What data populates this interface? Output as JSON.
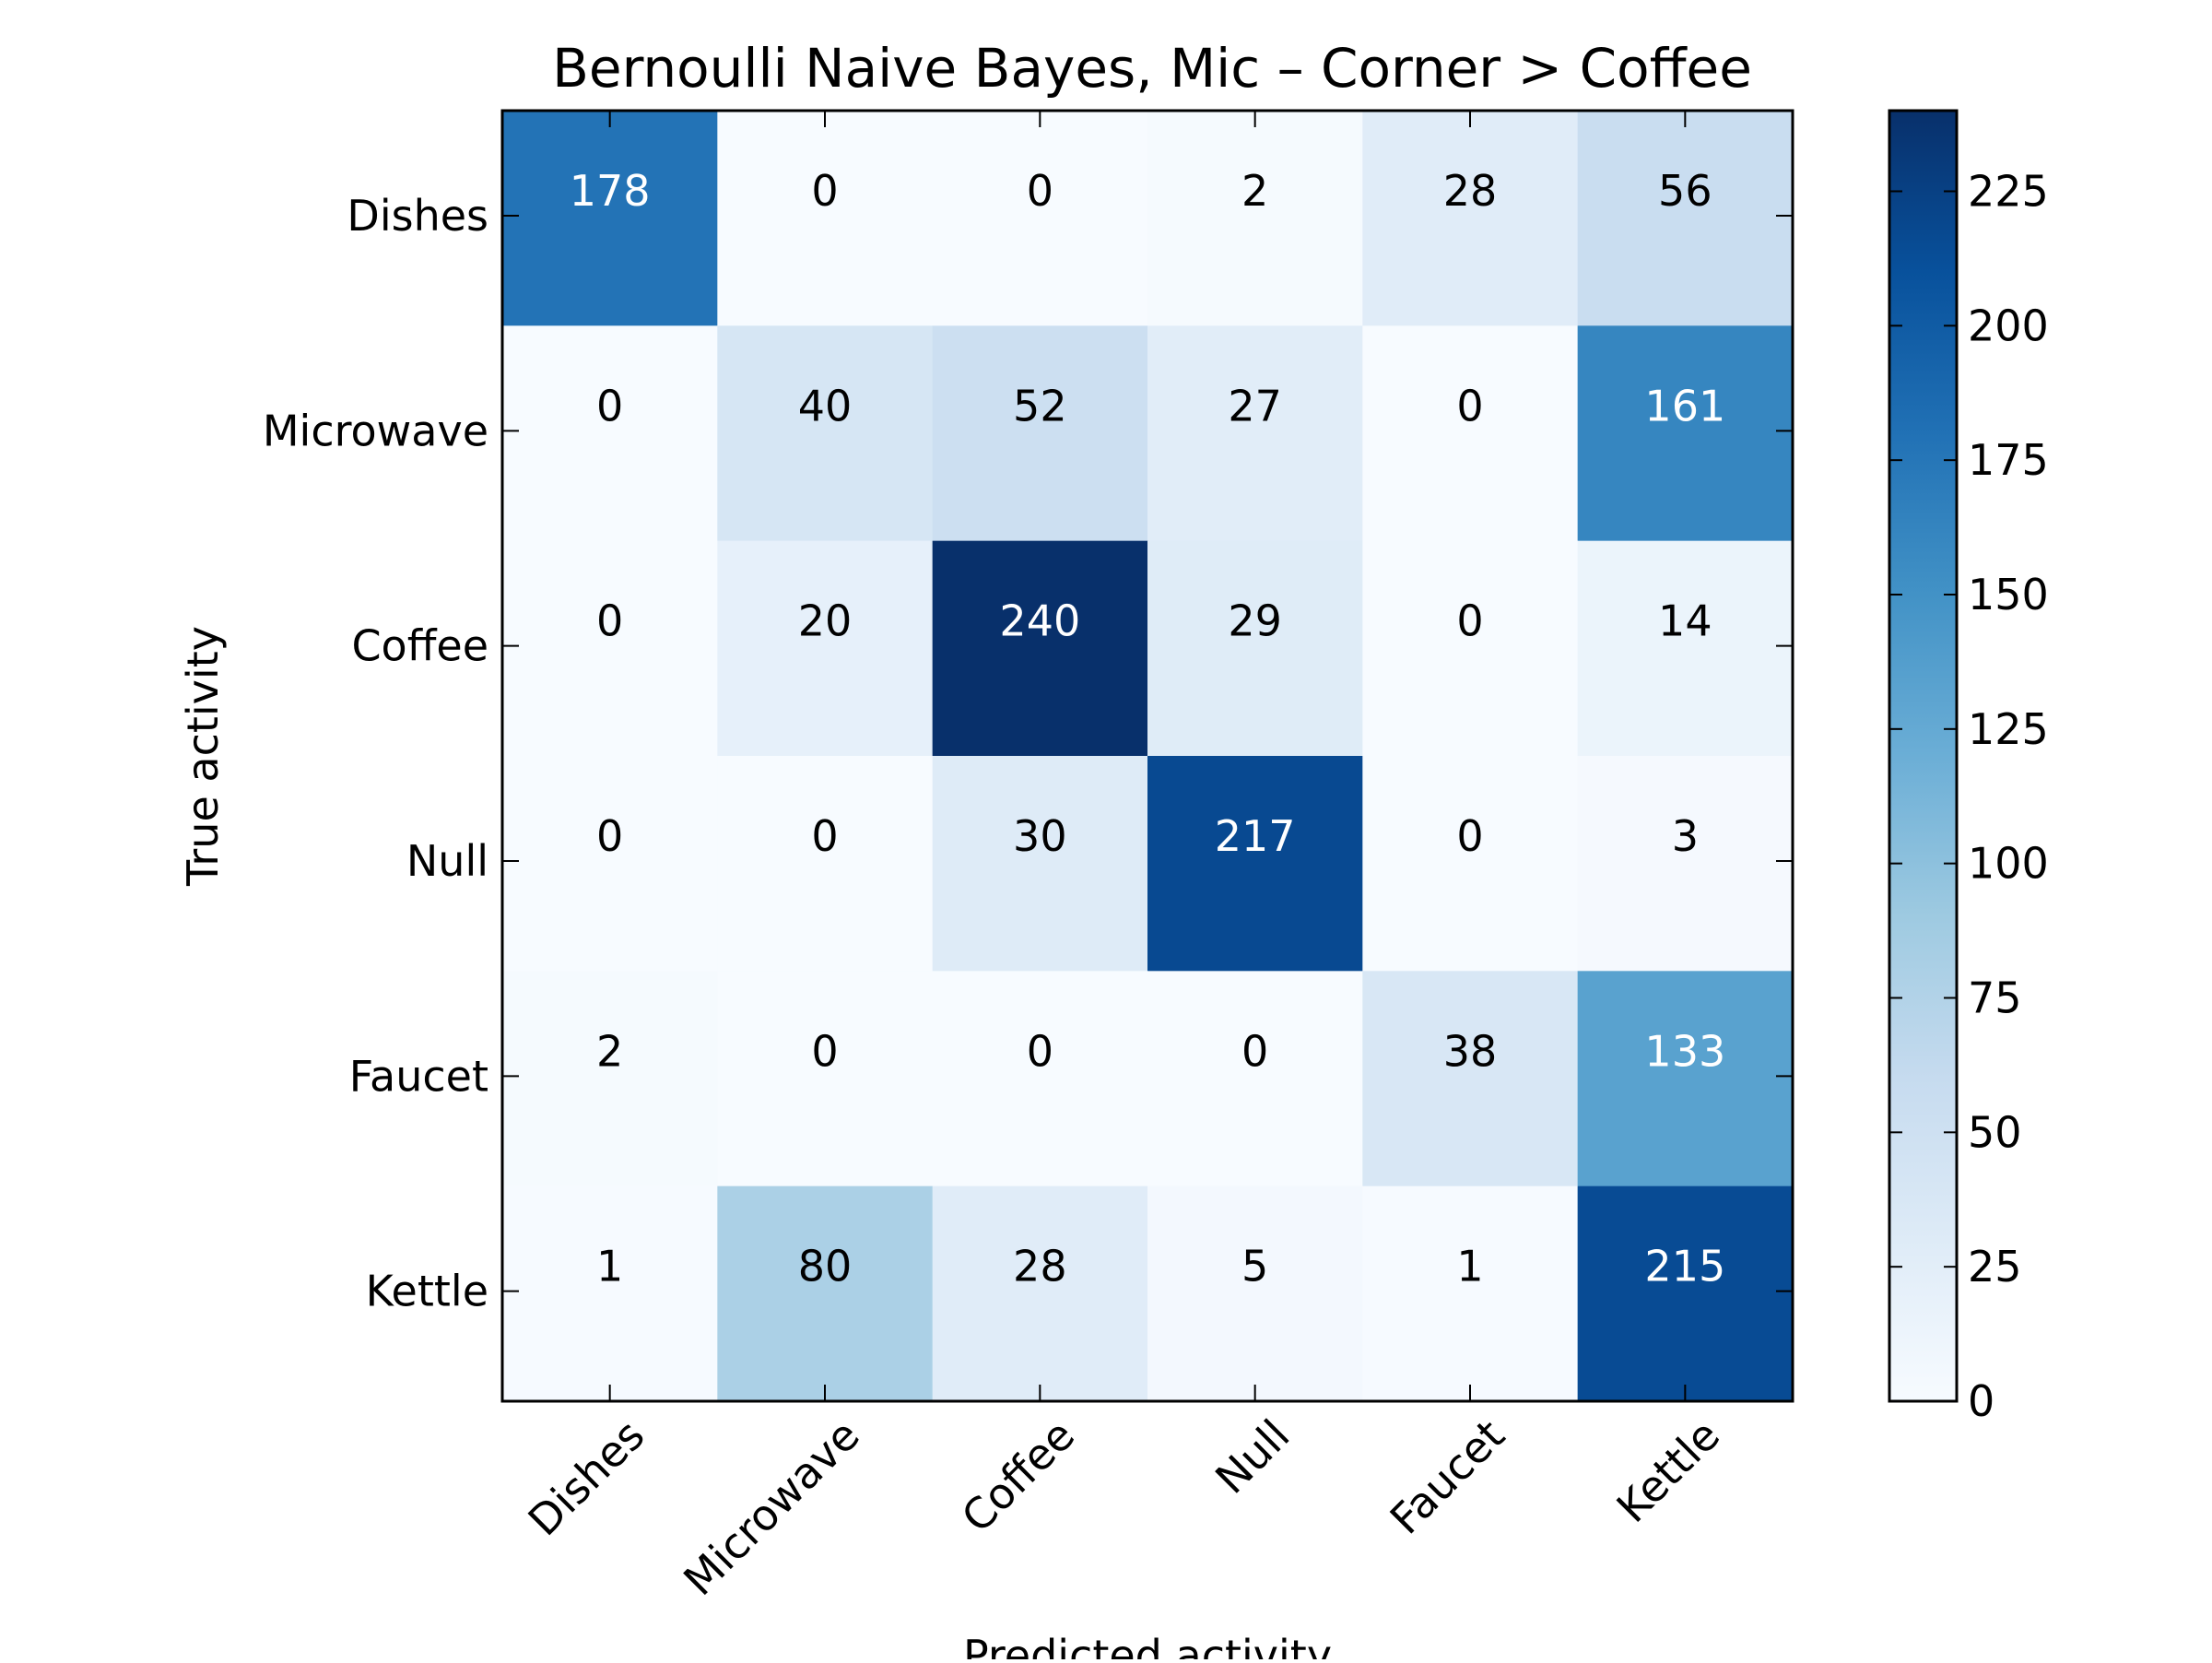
{
  "chart_data": {
    "type": "heatmap",
    "title": "Bernoulli Naive Bayes, Mic – Corner > Coffee",
    "xlabel": "Predicted activity",
    "ylabel": "True activity",
    "x_categories": [
      "Dishes",
      "Microwave",
      "Coffee",
      "Null",
      "Faucet",
      "Kettle"
    ],
    "y_categories": [
      "Dishes",
      "Microwave",
      "Coffee",
      "Null",
      "Faucet",
      "Kettle"
    ],
    "values": [
      [
        178,
        0,
        0,
        2,
        28,
        56
      ],
      [
        0,
        40,
        52,
        27,
        0,
        161
      ],
      [
        0,
        20,
        240,
        29,
        0,
        14
      ],
      [
        0,
        0,
        30,
        217,
        0,
        3
      ],
      [
        2,
        0,
        0,
        0,
        38,
        133
      ],
      [
        1,
        80,
        28,
        5,
        1,
        215
      ]
    ],
    "color_range": [
      0,
      240
    ],
    "colormap": "Blues",
    "colorbar_ticks": [
      0,
      25,
      50,
      75,
      100,
      125,
      150,
      175,
      200,
      225
    ],
    "annotation_light_text_threshold": 120,
    "colors": {
      "low": "#f7fbff",
      "high": "#08306b",
      "text_dark": "#000000",
      "text_light": "#ffffff"
    }
  }
}
